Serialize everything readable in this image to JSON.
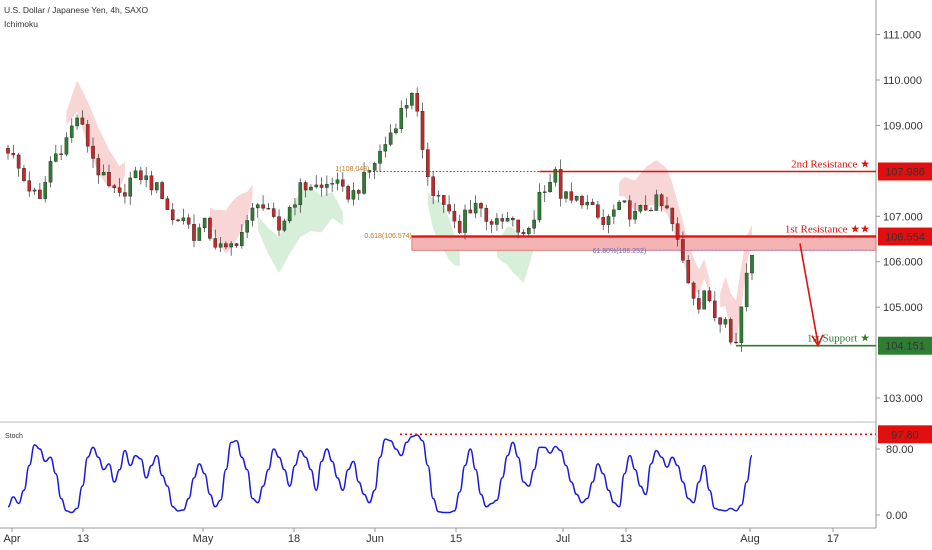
{
  "header": {
    "symbol_line": "U.S. Dollar / Japanese Yen, 4h, SAXO",
    "indicator": "Ichimoku"
  },
  "stoch_label": "Stoch",
  "colors": {
    "candle_up": "#2e7d32",
    "candle_down": "#c62828",
    "resistance": "#e01010",
    "support": "#2e7d32",
    "stoch": "#1a1adb",
    "cloud_red": "#f8d6d6",
    "cloud_green": "#d7eed9",
    "fib": "#c07a20"
  },
  "chart_data": [
    {
      "type": "candlestick",
      "x_ticks": [
        "Apr",
        "13",
        "May",
        "18",
        "Jun",
        "15",
        "Jul",
        "13",
        "Aug",
        "17"
      ],
      "y_ticks": [
        "111.000",
        "110.000",
        "109.000",
        "107.000",
        "106.000",
        "105.000",
        "103.000"
      ],
      "ylim": [
        102.5,
        111.1
      ],
      "close_path": [
        [
          0,
          108.5
        ],
        [
          3,
          107.8
        ],
        [
          6,
          107.3
        ],
        [
          8,
          108.2
        ],
        [
          11,
          108.7
        ],
        [
          13,
          109.2
        ],
        [
          15,
          108.6
        ],
        [
          17,
          108.0
        ],
        [
          19,
          107.6
        ],
        [
          21,
          107.4
        ],
        [
          23,
          107.8
        ],
        [
          25,
          107.9
        ],
        [
          27,
          107.7
        ],
        [
          29,
          107.5
        ],
        [
          31,
          106.9
        ],
        [
          33,
          107.0
        ],
        [
          35,
          106.6
        ],
        [
          37,
          106.8
        ],
        [
          39,
          106.4
        ],
        [
          41,
          106.2
        ],
        [
          43,
          106.5
        ],
        [
          45,
          106.8
        ],
        [
          47,
          107.4
        ],
        [
          49,
          107.0
        ],
        [
          51,
          106.7
        ],
        [
          53,
          107.2
        ],
        [
          55,
          107.6
        ],
        [
          57,
          107.7
        ],
        [
          59,
          107.6
        ],
        [
          61,
          107.8
        ],
        [
          63,
          107.5
        ],
        [
          65,
          107.5
        ],
        [
          67,
          107.8
        ],
        [
          69,
          108.2
        ],
        [
          71,
          108.6
        ],
        [
          73,
          109.1
        ],
        [
          75,
          109.5
        ],
        [
          76,
          109.8
        ],
        [
          77,
          109.2
        ],
        [
          78,
          108.3
        ],
        [
          80,
          107.6
        ],
        [
          82,
          107.3
        ],
        [
          84,
          106.8
        ],
        [
          85,
          106.6
        ],
        [
          86,
          107.1
        ],
        [
          88,
          107.3
        ],
        [
          90,
          107.0
        ],
        [
          92,
          106.8
        ],
        [
          94,
          106.9
        ],
        [
          96,
          106.7
        ],
        [
          97,
          106.5
        ],
        [
          99,
          107.0
        ],
        [
          100,
          107.5
        ],
        [
          101,
          107.7
        ],
        [
          103,
          107.9
        ],
        [
          104,
          107.5
        ],
        [
          106,
          107.3
        ],
        [
          108,
          107.4
        ],
        [
          110,
          107.1
        ],
        [
          112,
          106.8
        ],
        [
          114,
          107.1
        ],
        [
          116,
          107.2
        ],
        [
          118,
          107.0
        ],
        [
          120,
          107.2
        ],
        [
          122,
          107.3
        ],
        [
          124,
          107.1
        ],
        [
          125,
          106.8
        ],
        [
          126,
          106.4
        ],
        [
          127,
          106.0
        ],
        [
          128,
          105.6
        ],
        [
          129,
          105.3
        ],
        [
          130,
          105.1
        ],
        [
          131,
          105.4
        ],
        [
          132,
          105.0
        ],
        [
          133,
          104.8
        ],
        [
          134,
          104.7
        ],
        [
          135,
          104.9
        ],
        [
          136,
          104.4
        ],
        [
          137,
          104.2
        ],
        [
          138,
          105.0
        ],
        [
          139,
          105.8
        ],
        [
          140,
          106.2
        ]
      ],
      "cloud_red_regions": [
        [
          11,
          22
        ],
        [
          38,
          46
        ],
        [
          115,
          132
        ],
        [
          134,
          140
        ]
      ],
      "cloud_green_regions": [
        [
          47,
          63
        ],
        [
          79,
          85
        ],
        [
          92,
          99
        ]
      ],
      "levels": [
        {
          "name": "2nd Resistance ★",
          "value": "107.986",
          "y": 107.986,
          "color": "resistance"
        },
        {
          "name": "1st Resistance ★★",
          "value": "106.554",
          "y": 106.554,
          "color": "resistance"
        },
        {
          "name": "1st Support ★",
          "value": "104.151",
          "y": 104.151,
          "color": "support"
        }
      ],
      "fib": [
        {
          "label": "1(108.048)",
          "y": 108.048
        },
        {
          "label": "0.618(106.574)",
          "y": 106.574
        },
        {
          "label": "61.80%(106.252)",
          "y": 106.252
        }
      ],
      "resistance_zone": [
        106.252,
        106.574
      ],
      "forecast_arrow": {
        "from": [
          106.4
        ],
        "to": [
          104.151
        ]
      }
    },
    {
      "type": "line",
      "name": "Stoch",
      "y_ticks": [
        "80.00",
        "0.00"
      ],
      "ylim": [
        -6,
        106
      ],
      "level": {
        "value": "97.80",
        "y": 97.8
      },
      "values": [
        10,
        22,
        14,
        30,
        60,
        85,
        80,
        65,
        70,
        50,
        20,
        5,
        3,
        8,
        35,
        70,
        82,
        70,
        55,
        62,
        40,
        55,
        78,
        60,
        72,
        68,
        45,
        60,
        72,
        48,
        35,
        10,
        5,
        6,
        20,
        45,
        62,
        50,
        25,
        10,
        18,
        55,
        88,
        90,
        70,
        55,
        20,
        15,
        35,
        55,
        80,
        70,
        55,
        35,
        60,
        78,
        70,
        55,
        30,
        65,
        80,
        65,
        45,
        30,
        55,
        65,
        40,
        25,
        15,
        30,
        70,
        92,
        90,
        80,
        72,
        88,
        95,
        97,
        90,
        60,
        20,
        4,
        3,
        3,
        5,
        28,
        60,
        80,
        55,
        25,
        10,
        14,
        18,
        45,
        72,
        88,
        70,
        40,
        35,
        55,
        82,
        82,
        75,
        83,
        78,
        60,
        40,
        25,
        15,
        20,
        40,
        62,
        50,
        30,
        15,
        10,
        50,
        72,
        55,
        35,
        25,
        62,
        78,
        70,
        58,
        70,
        60,
        40,
        20,
        15,
        40,
        60,
        30,
        8,
        6,
        5,
        8,
        5,
        12,
        40,
        72
      ]
    }
  ]
}
